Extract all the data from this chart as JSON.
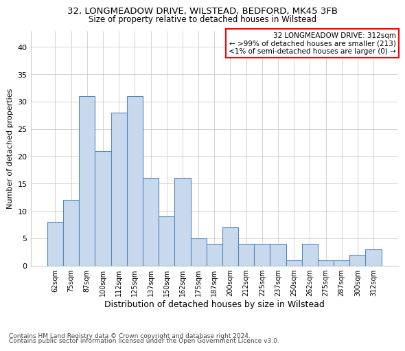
{
  "title1": "32, LONGMEADOW DRIVE, WILSTEAD, BEDFORD, MK45 3FB",
  "title2": "Size of property relative to detached houses in Wilstead",
  "xlabel": "Distribution of detached houses by size in Wilstead",
  "ylabel": "Number of detached properties",
  "categories": [
    "62sqm",
    "75sqm",
    "87sqm",
    "100sqm",
    "112sqm",
    "125sqm",
    "137sqm",
    "150sqm",
    "162sqm",
    "175sqm",
    "187sqm",
    "200sqm",
    "212sqm",
    "225sqm",
    "237sqm",
    "250sqm",
    "262sqm",
    "275sqm",
    "287sqm",
    "300sqm",
    "312sqm"
  ],
  "values": [
    8,
    12,
    31,
    21,
    28,
    31,
    16,
    9,
    16,
    5,
    4,
    7,
    4,
    4,
    4,
    1,
    4,
    1,
    1,
    2,
    3
  ],
  "bar_facecolor": "#c8d9ee",
  "bar_edgecolor": "#5588bb",
  "ylim": [
    0,
    43
  ],
  "yticks": [
    0,
    5,
    10,
    15,
    20,
    25,
    30,
    35,
    40
  ],
  "legend_title": "32 LONGMEADOW DRIVE: 312sqm",
  "legend_line1": "← >99% of detached houses are smaller (213)",
  "legend_line2": "<1% of semi-detached houses are larger (0) →",
  "footer1": "Contains HM Land Registry data © Crown copyright and database right 2024.",
  "footer2": "Contains public sector information licensed under the Open Government Licence v3.0.",
  "bg_color": "#ffffff",
  "grid_color": "#cccccc",
  "title1_fontsize": 9.5,
  "title2_fontsize": 8.5,
  "xlabel_fontsize": 9,
  "ylabel_fontsize": 8,
  "tick_fontsize": 7,
  "legend_fontsize": 7.5,
  "footer_fontsize": 6.5
}
